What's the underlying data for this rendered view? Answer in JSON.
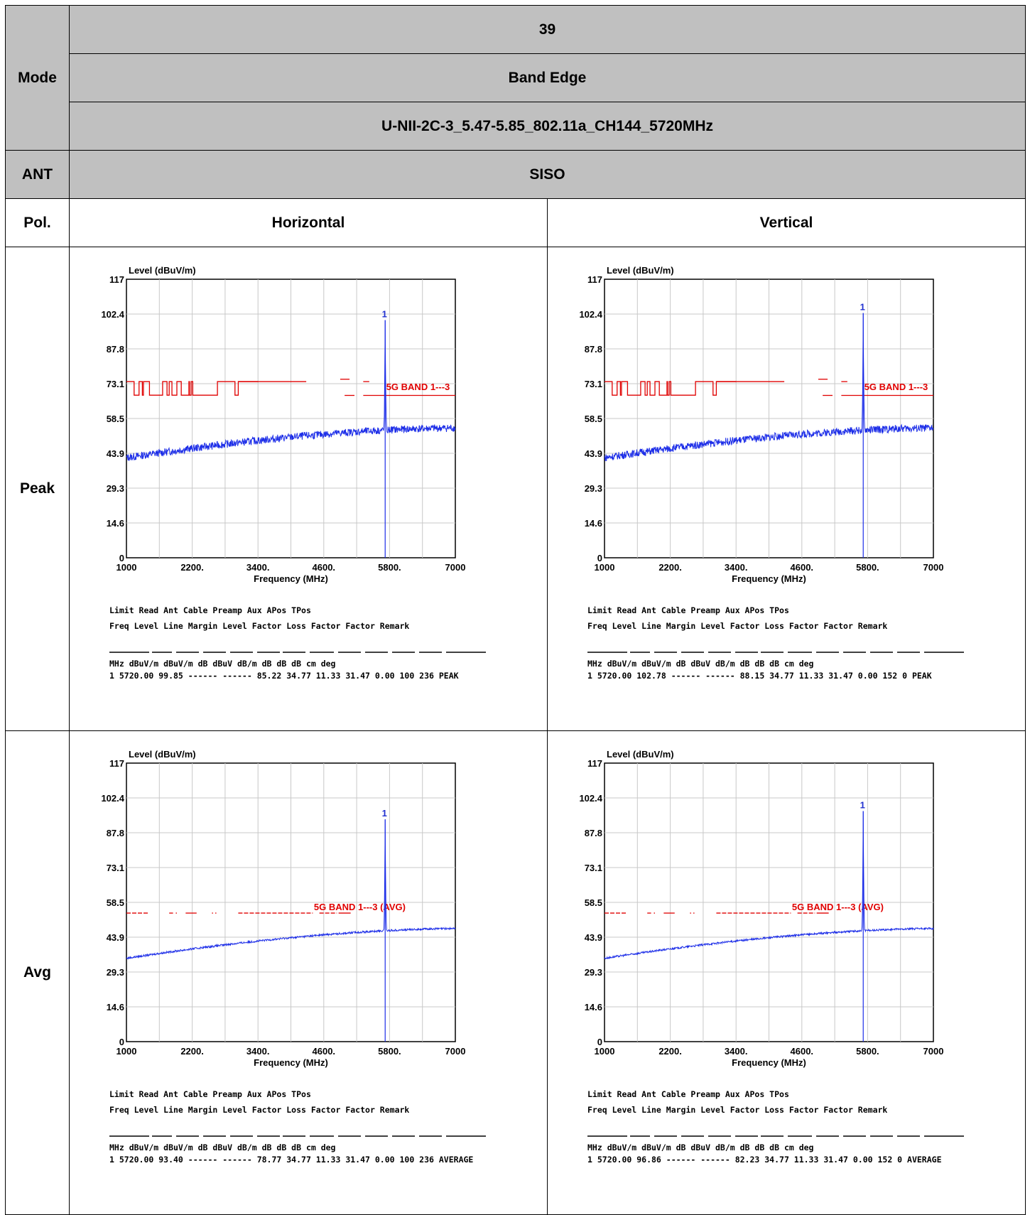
{
  "header": {
    "mode_label": "Mode",
    "mode_number": "39",
    "mode_type": "Band Edge",
    "mode_config": "U-NII-2C-3_5.47-5.85_802.11a_CH144_5720MHz",
    "ant_label": "ANT",
    "ant_value": "SISO",
    "pol_label": "Pol.",
    "pol_h": "Horizontal",
    "pol_v": "Vertical",
    "peak_label": "Peak",
    "avg_label": "Avg"
  },
  "table_header": {
    "row1": "                Limit           Read    Ant  Cable Preamp    Aux   APos   TPos",
    "row2": "       Freq  Level   Line Margin  Level Factor   Loss Factor Factor                   Remark",
    "units": "        MHz dBuV/m dBuV/m     dB   dBuV   dB/m     dB     dB     dB     cm    deg"
  },
  "chart_data": [
    {
      "type": "line",
      "id": "peak-horizontal",
      "ylabel": "Level (dBuV/m)",
      "xlabel": "Frequency (MHz)",
      "xlim": [
        1000,
        7000
      ],
      "ylim": [
        0,
        117
      ],
      "x_ticks": [
        "1000",
        "2200.",
        "3400.",
        "4600.",
        "5800.",
        "7000"
      ],
      "y_ticks": [
        "0",
        "14.6",
        "29.3",
        "43.9",
        "58.5",
        "73.1",
        "87.8",
        "102.4",
        "117"
      ],
      "limit_label": "5G BAND 1---3",
      "limit_kind": "peak",
      "noise": {
        "start": 42,
        "end": 54.5,
        "amp": 1.6
      },
      "marker": {
        "label": "1",
        "freq": 5720,
        "level": 99.85
      },
      "reading": "1   5720.00  99.85 ------ ------  85.22  34.77  11.33  31.47   0.00    100    236 PEAK"
    },
    {
      "type": "line",
      "id": "peak-vertical",
      "ylabel": "Level (dBuV/m)",
      "xlabel": "Frequency (MHz)",
      "xlim": [
        1000,
        7000
      ],
      "ylim": [
        0,
        117
      ],
      "x_ticks": [
        "1000",
        "2200.",
        "3400.",
        "4600.",
        "5800.",
        "7000"
      ],
      "y_ticks": [
        "0",
        "14.6",
        "29.3",
        "43.9",
        "58.5",
        "73.1",
        "87.8",
        "102.4",
        "117"
      ],
      "limit_label": "5G BAND 1---3",
      "limit_kind": "peak",
      "noise": {
        "start": 42,
        "end": 54.5,
        "amp": 1.6
      },
      "marker": {
        "label": "1",
        "freq": 5720,
        "level": 102.78
      },
      "reading": "1   5720.00 102.78 ------ ------  88.15  34.77  11.33  31.47   0.00    152      0 PEAK"
    },
    {
      "type": "line",
      "id": "avg-horizontal",
      "ylabel": "Level (dBuV/m)",
      "xlabel": "Frequency (MHz)",
      "xlim": [
        1000,
        7000
      ],
      "ylim": [
        0,
        117
      ],
      "x_ticks": [
        "1000",
        "2200.",
        "3400.",
        "4600.",
        "5800.",
        "7000"
      ],
      "y_ticks": [
        "0",
        "14.6",
        "29.3",
        "43.9",
        "58.5",
        "73.1",
        "87.8",
        "102.4",
        "117"
      ],
      "limit_label": "5G BAND 1---3 (AVG)",
      "limit_kind": "avg",
      "noise": {
        "start": 35,
        "end": 47.5,
        "amp": 0.4
      },
      "marker": {
        "label": "1",
        "freq": 5720,
        "level": 93.4
      },
      "reading": "1   5720.00  93.40 ------ ------  78.77  34.77  11.33  31.47   0.00    100    236 AVERAGE"
    },
    {
      "type": "line",
      "id": "avg-vertical",
      "ylabel": "Level (dBuV/m)",
      "xlabel": "Frequency (MHz)",
      "xlim": [
        1000,
        7000
      ],
      "ylim": [
        0,
        117
      ],
      "x_ticks": [
        "1000",
        "2200.",
        "3400.",
        "4600.",
        "5800.",
        "7000"
      ],
      "y_ticks": [
        "0",
        "14.6",
        "29.3",
        "43.9",
        "58.5",
        "73.1",
        "87.8",
        "102.4",
        "117"
      ],
      "limit_label": "5G BAND 1---3 (AVG)",
      "limit_kind": "avg",
      "noise": {
        "start": 35,
        "end": 47.5,
        "amp": 0.4
      },
      "marker": {
        "label": "1",
        "freq": 5720,
        "level": 96.86
      },
      "reading": "1   5720.00  96.86 ------ ------  82.23  34.77  11.33  31.47   0.00    152      0 AVERAGE"
    }
  ]
}
